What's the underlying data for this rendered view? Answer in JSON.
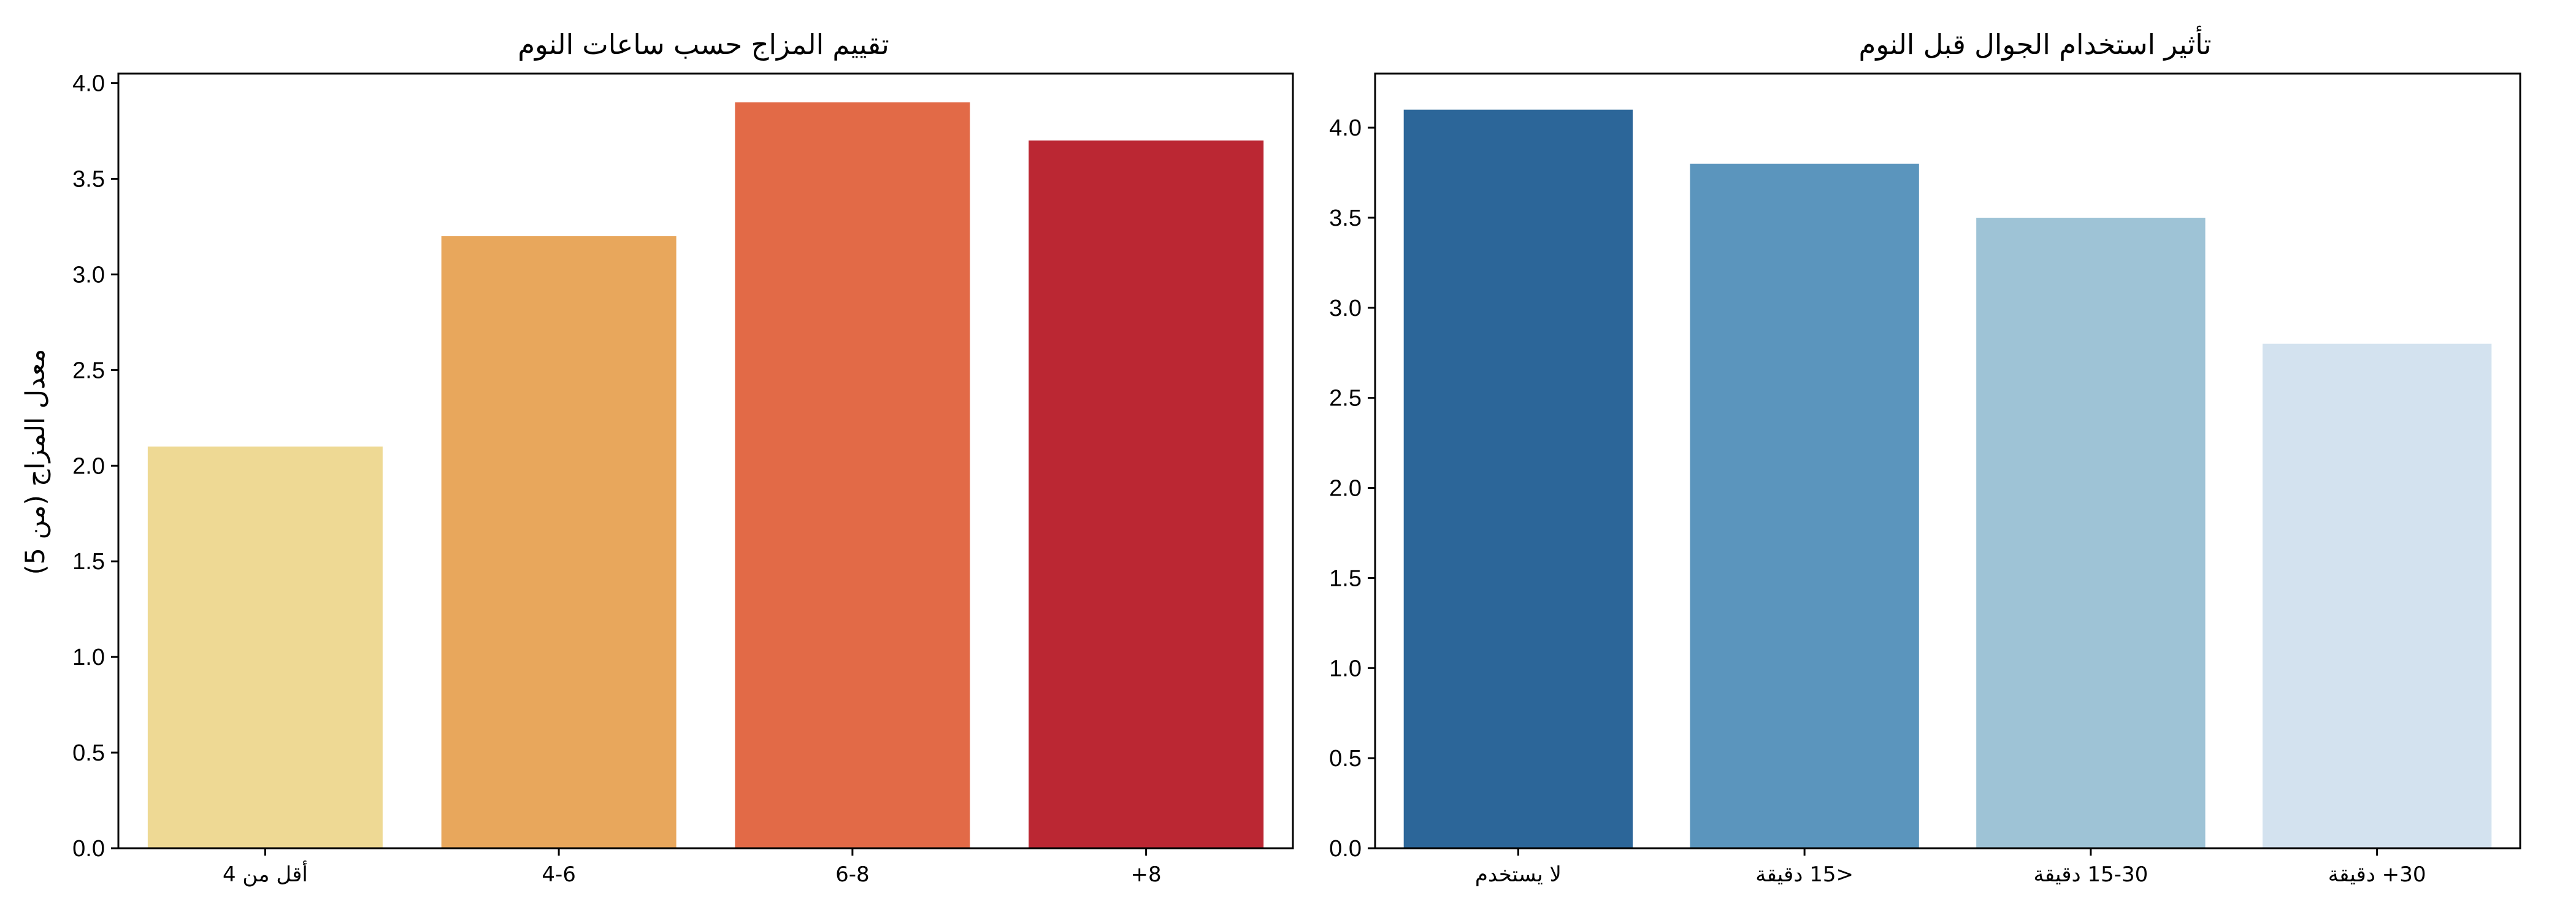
{
  "chart_data": [
    {
      "type": "bar",
      "title": "تقييم المزاج حسب ساعات النوم",
      "ylabel": "معدل المزاج (من 5)",
      "xlabel": "",
      "categories": [
        "أقل من 4",
        "4-6",
        "6-8",
        "8+"
      ],
      "values": [
        2.1,
        3.2,
        3.9,
        3.7
      ],
      "colors": [
        "#eed994",
        "#e8a75c",
        "#e26a47",
        "#bb2733"
      ],
      "ylim": [
        0,
        4.05
      ],
      "yticks": [
        "0.0",
        "0.5",
        "1.0",
        "1.5",
        "2.0",
        "2.5",
        "3.0",
        "3.5",
        "4.0"
      ],
      "grid": false
    },
    {
      "type": "bar",
      "title": "تأثير استخدام الجوال قبل النوم",
      "ylabel": "",
      "xlabel": "",
      "categories": [
        "لا يستخدم",
        "<15 دقيقة",
        "15-30 دقيقة",
        "30+ دقيقة"
      ],
      "values": [
        4.1,
        3.8,
        3.5,
        2.8
      ],
      "colors": [
        "#2c6699",
        "#5b95bd",
        "#9ec3d6",
        "#d3e2ef"
      ],
      "ylim": [
        0,
        4.3
      ],
      "yticks": [
        "0.0",
        "0.5",
        "1.0",
        "1.5",
        "2.0",
        "2.5",
        "3.0",
        "3.5",
        "4.0"
      ],
      "grid": false
    }
  ]
}
